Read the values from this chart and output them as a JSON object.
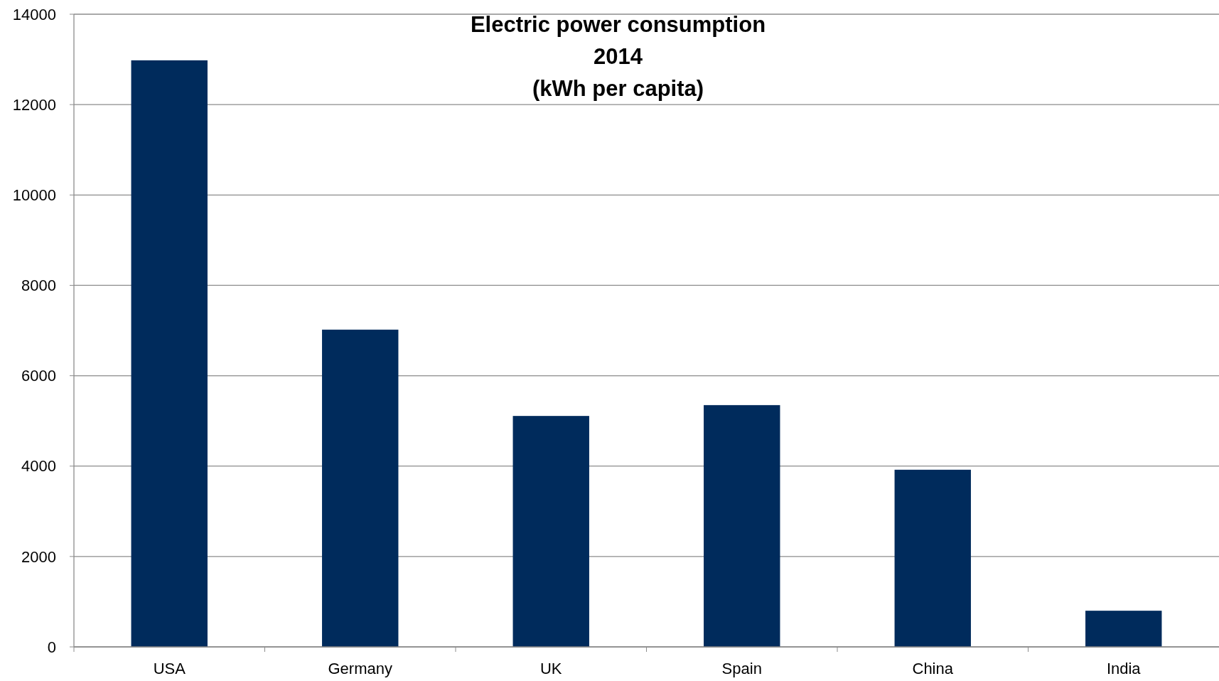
{
  "chart_data": {
    "type": "bar",
    "title": "Electric power consumption\n2014\n(kWh per capita)",
    "categories": [
      "USA",
      "Germany",
      "UK",
      "Spain",
      "China",
      "India"
    ],
    "values": [
      12980,
      7020,
      5110,
      5350,
      3920,
      800
    ],
    "color": "#002b5c",
    "ylim": [
      0,
      14000
    ],
    "yticks": [
      0,
      2000,
      4000,
      6000,
      8000,
      10000,
      12000,
      14000
    ],
    "grid": "y"
  }
}
